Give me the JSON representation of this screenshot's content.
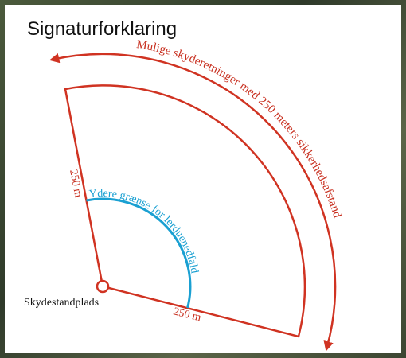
{
  "title": "Signaturforklaring",
  "labels": {
    "directions": "Mulige skyderetninger med 250 meters sikkerhedsafstand",
    "inner_limit": "Ydere grænse for lerduenedfald",
    "distance_left": "250 m",
    "distance_bottom": "250 m",
    "position": "Skydestandplads"
  }
}
